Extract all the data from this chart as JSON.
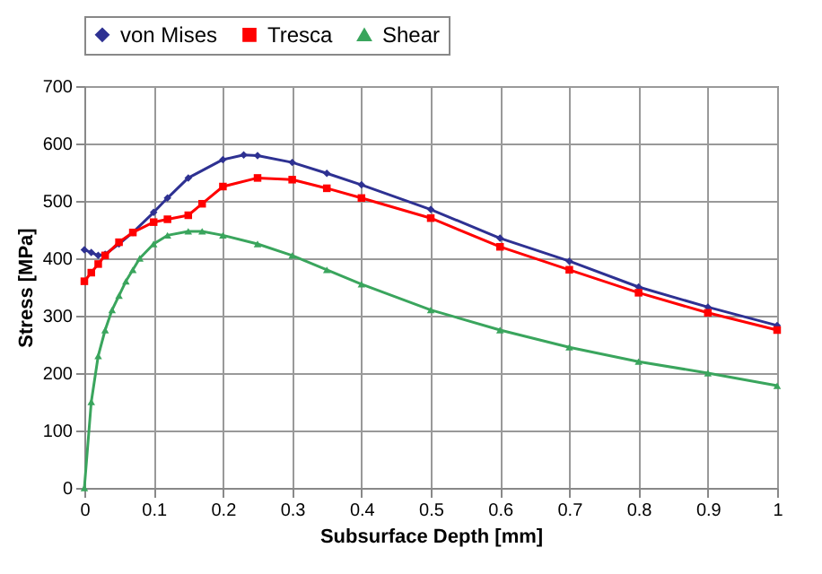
{
  "chart_data": {
    "type": "line",
    "xlabel": "Subsurface Depth [mm]",
    "ylabel": "Stress [MPa]",
    "xlim": [
      0,
      1
    ],
    "xticks": [
      0,
      0.1,
      0.2,
      0.3,
      0.4,
      0.5,
      0.6,
      0.7,
      0.8,
      0.9,
      1
    ],
    "ylim": [
      0,
      700
    ],
    "yticks": [
      0,
      100,
      200,
      300,
      400,
      500,
      600,
      700
    ],
    "grid": true,
    "legend": "top",
    "line_style": "solid",
    "series": [
      {
        "name": "von Mises",
        "color": "#2e3192",
        "marker": "diamond",
        "x": [
          0,
          0.01,
          0.02,
          0.03,
          0.05,
          0.07,
          0.1,
          0.12,
          0.15,
          0.2,
          0.23,
          0.25,
          0.3,
          0.35,
          0.4,
          0.5,
          0.6,
          0.7,
          0.8,
          0.9,
          1.0
        ],
        "values": [
          415,
          410,
          405,
          407,
          425,
          445,
          480,
          505,
          540,
          572,
          580,
          579,
          567,
          548,
          528,
          485,
          435,
          395,
          350,
          315,
          283
        ]
      },
      {
        "name": "Tresca",
        "color": "#ff0000",
        "marker": "square",
        "x": [
          0,
          0.01,
          0.02,
          0.03,
          0.05,
          0.07,
          0.1,
          0.12,
          0.15,
          0.17,
          0.2,
          0.25,
          0.3,
          0.35,
          0.4,
          0.5,
          0.6,
          0.7,
          0.8,
          0.9,
          1.0
        ],
        "values": [
          360,
          375,
          390,
          405,
          428,
          445,
          463,
          468,
          475,
          495,
          525,
          540,
          537,
          522,
          505,
          470,
          420,
          380,
          340,
          305,
          275
        ]
      },
      {
        "name": "Shear",
        "color": "#3aa55d",
        "marker": "triangle",
        "x": [
          0,
          0.01,
          0.02,
          0.03,
          0.04,
          0.05,
          0.06,
          0.07,
          0.08,
          0.1,
          0.12,
          0.15,
          0.17,
          0.2,
          0.25,
          0.3,
          0.35,
          0.4,
          0.5,
          0.6,
          0.7,
          0.8,
          0.9,
          1.0
        ],
        "values": [
          0,
          150,
          230,
          275,
          310,
          335,
          360,
          380,
          400,
          425,
          440,
          447,
          447,
          440,
          425,
          405,
          380,
          355,
          310,
          275,
          245,
          220,
          200,
          178
        ]
      }
    ]
  }
}
